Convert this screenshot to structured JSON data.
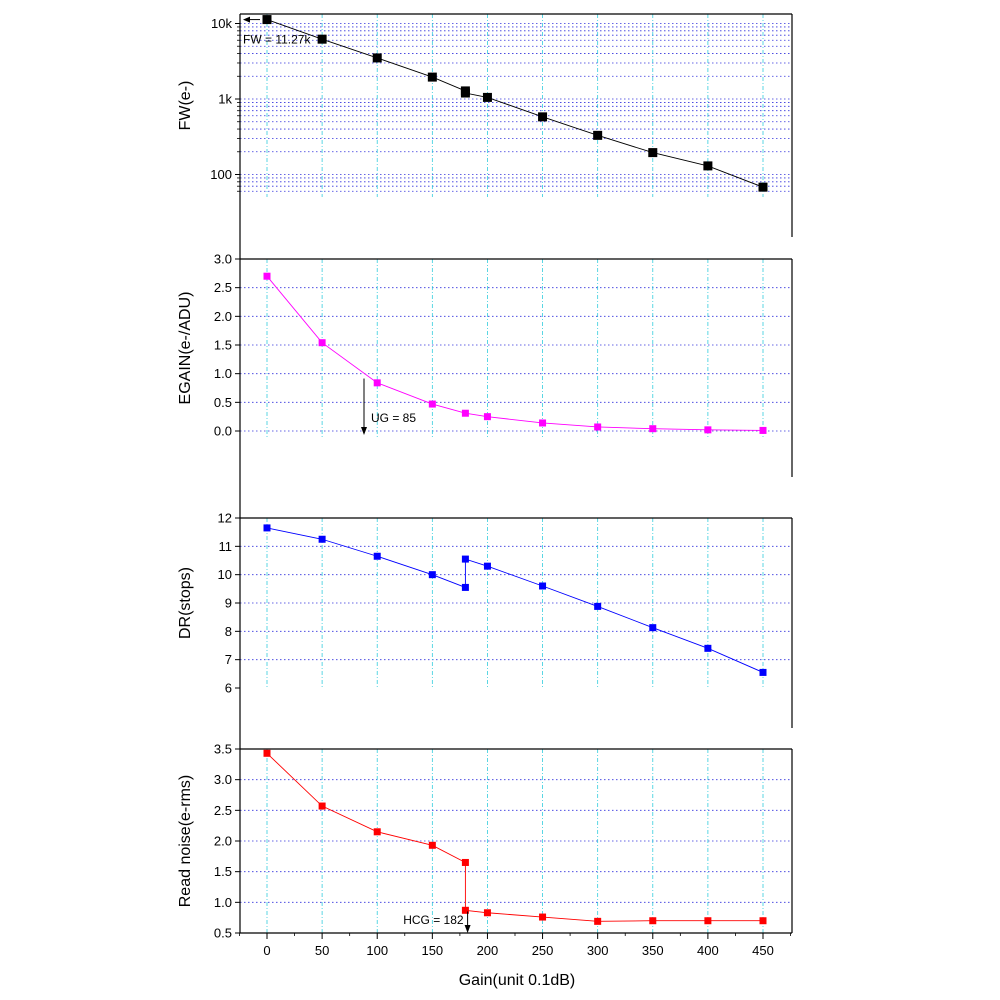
{
  "x_axis": {
    "label": "Gain(unit 0.1dB)",
    "ticks": [
      0,
      50,
      100,
      150,
      200,
      250,
      300,
      350,
      400,
      450
    ],
    "range": [
      -25,
      475
    ]
  },
  "chart_data": [
    {
      "type": "line",
      "id": "fw",
      "ylabel": "FW(e-)",
      "yscale": "log",
      "ylim": [
        55,
        13000
      ],
      "yticks": [
        {
          "value": 100,
          "label": "100"
        },
        {
          "value": 1000,
          "label": "1k"
        },
        {
          "value": 10000,
          "label": "10k"
        }
      ],
      "color": "#000000",
      "line_color": "#000000",
      "x": [
        0,
        50,
        100,
        150,
        180,
        180,
        200,
        250,
        300,
        350,
        400,
        450
      ],
      "y": [
        11270,
        6200,
        3500,
        1950,
        1280,
        1200,
        1050,
        580,
        330,
        195,
        130,
        68
      ],
      "annotations": [
        {
          "text": "FW = 11.27k",
          "x": 0,
          "y": 11270,
          "arrow": "left"
        }
      ]
    },
    {
      "type": "line",
      "id": "egain",
      "ylabel": "EGAIN(e-/ADU)",
      "yscale": "linear",
      "ylim": [
        -0.15,
        3.0
      ],
      "yticks": [
        {
          "value": 0,
          "label": "0.0"
        },
        {
          "value": 0.5,
          "label": "0.5"
        },
        {
          "value": 1,
          "label": "1.0"
        },
        {
          "value": 1.5,
          "label": "1.5"
        },
        {
          "value": 2,
          "label": "2.0"
        },
        {
          "value": 2.5,
          "label": "2.5"
        },
        {
          "value": 3,
          "label": "3.0"
        }
      ],
      "color": "#ff00ff",
      "line_color": "#ff00ff",
      "x": [
        0,
        50,
        100,
        150,
        180,
        200,
        250,
        300,
        350,
        400,
        450
      ],
      "y": [
        2.7,
        1.54,
        0.84,
        0.47,
        0.31,
        0.25,
        0.14,
        0.07,
        0.04,
        0.02,
        0.01
      ],
      "annotations": [
        {
          "text": "UG = 85",
          "x": 88,
          "y": 0.95,
          "arrow": "down"
        }
      ]
    },
    {
      "type": "line",
      "id": "dr",
      "ylabel": "DR(stops)",
      "yscale": "linear",
      "ylim": [
        6,
        12.5
      ],
      "yticks": [
        {
          "value": 6,
          "label": "6"
        },
        {
          "value": 7,
          "label": "7"
        },
        {
          "value": 8,
          "label": "8"
        },
        {
          "value": 9,
          "label": "9"
        },
        {
          "value": 10,
          "label": "10"
        },
        {
          "value": 11,
          "label": "11"
        },
        {
          "value": 12,
          "label": "12"
        }
      ],
      "color": "#0000ff",
      "line_color": "#0000ff",
      "x": [
        0,
        50,
        100,
        150,
        180,
        180,
        200,
        250,
        300,
        350,
        400,
        450
      ],
      "y": [
        11.65,
        11.25,
        10.65,
        10.0,
        9.55,
        10.55,
        10.3,
        9.6,
        8.88,
        8.13,
        7.4,
        6.55
      ]
    },
    {
      "type": "line",
      "id": "read_noise",
      "ylabel": "Read noise(e-rms)",
      "yscale": "linear",
      "ylim": [
        0.5,
        3.5
      ],
      "yticks": [
        {
          "value": 0.5,
          "label": "0.5"
        },
        {
          "value": 1,
          "label": "1.0"
        },
        {
          "value": 1.5,
          "label": "1.5"
        },
        {
          "value": 2,
          "label": "2.0"
        },
        {
          "value": 2.5,
          "label": "2.5"
        },
        {
          "value": 3,
          "label": "3.0"
        },
        {
          "value": 3.5,
          "label": "3.5"
        }
      ],
      "color": "#ff0000",
      "line_color": "#ff0000",
      "x": [
        0,
        50,
        100,
        150,
        180,
        180,
        200,
        250,
        300,
        350,
        400,
        450
      ],
      "y": [
        3.43,
        2.57,
        2.15,
        1.93,
        1.65,
        0.87,
        0.83,
        0.76,
        0.69,
        0.7,
        0.7,
        0.7
      ],
      "annotations": [
        {
          "text": "HCG = 182",
          "x": 182,
          "y": 0.9,
          "arrow": "down"
        }
      ]
    }
  ],
  "grid": {
    "horizontal": "blue-dotted",
    "vertical": "cyan-dash-dot",
    "on": true
  }
}
